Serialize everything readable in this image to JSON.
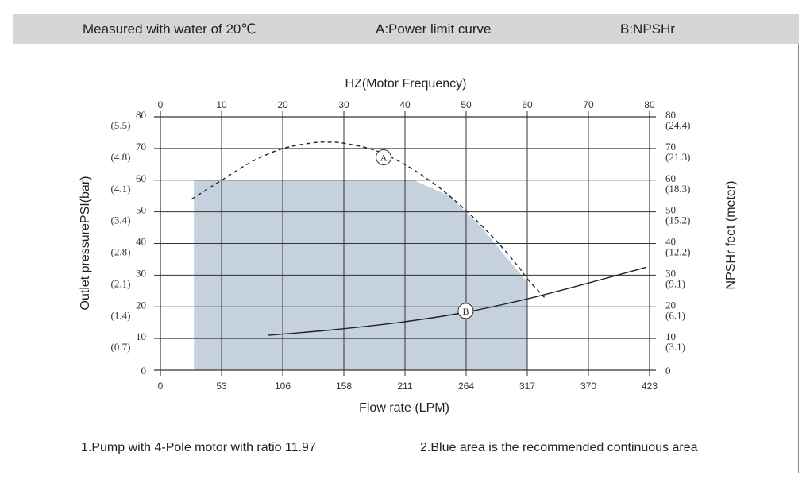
{
  "header": {
    "measured": "Measured with water of 20℃",
    "curve_a": "A:Power limit curve",
    "curve_b": "B:NPSHr"
  },
  "footer": {
    "note1": "1.Pump with 4-Pole motor with ratio 11.97",
    "note2": "2.Blue area is the recommended continuous area"
  },
  "chart_data": {
    "type": "line",
    "title": "",
    "xlabel": "Flow rate (LPM)",
    "x2label": "HZ(Motor Frequency)",
    "ylabel": "Outlet pressurePSI(bar)",
    "y2label": "NPSHr feet (meter)",
    "xlim": [
      0,
      423
    ],
    "ylim": [
      0,
      80
    ],
    "x_ticks": [
      "0",
      "53",
      "106",
      "158",
      "211",
      "264",
      "317",
      "370",
      "423"
    ],
    "x2_ticks": [
      "0",
      "10",
      "20",
      "30",
      "40",
      "50",
      "60",
      "70",
      "80"
    ],
    "y_ticks": [
      {
        "value": 0,
        "psi": "0",
        "bar": ""
      },
      {
        "value": 10,
        "psi": "10",
        "bar": "(0.7)"
      },
      {
        "value": 20,
        "psi": "20",
        "bar": "(1.4)"
      },
      {
        "value": 30,
        "psi": "30",
        "bar": "(2.1)"
      },
      {
        "value": 40,
        "psi": "40",
        "bar": "(2.8)"
      },
      {
        "value": 50,
        "psi": "50",
        "bar": "(3.4)"
      },
      {
        "value": 60,
        "psi": "60",
        "bar": "(4.1)"
      },
      {
        "value": 70,
        "psi": "70",
        "bar": "(4.8)"
      },
      {
        "value": 80,
        "psi": "80",
        "bar": "(5.5)"
      }
    ],
    "y2_ticks": [
      {
        "value": 0,
        "feet": "0",
        "meter": ""
      },
      {
        "value": 10,
        "feet": "10",
        "meter": "(3.1)"
      },
      {
        "value": 20,
        "feet": "20",
        "meter": "(6.1)"
      },
      {
        "value": 30,
        "feet": "30",
        "meter": "(9.1)"
      },
      {
        "value": 40,
        "feet": "40",
        "meter": "(12.2)"
      },
      {
        "value": 50,
        "feet": "50",
        "meter": "(15.2)"
      },
      {
        "value": 60,
        "feet": "60",
        "meter": "(18.3)"
      },
      {
        "value": 70,
        "feet": "70",
        "meter": "(21.3)"
      },
      {
        "value": 80,
        "feet": "80",
        "meter": "(24.4)"
      }
    ],
    "grid": true,
    "area": {
      "color": "#c5d1dd",
      "points": [
        [
          29,
          0
        ],
        [
          29,
          60
        ],
        [
          219,
          60
        ],
        [
          250,
          55
        ],
        [
          278,
          45
        ],
        [
          296,
          37
        ],
        [
          317,
          28
        ],
        [
          317,
          0
        ]
      ]
    },
    "series": [
      {
        "name": "A",
        "style": "dashed",
        "color": "#222222",
        "points": [
          [
            27,
            54
          ],
          [
            53,
            60
          ],
          [
            80,
            66
          ],
          [
            106,
            70
          ],
          [
            132,
            71.8
          ],
          [
            145,
            72
          ],
          [
            158,
            71.7
          ],
          [
            185,
            69.5
          ],
          [
            211,
            65
          ],
          [
            238,
            58.5
          ],
          [
            264,
            50.5
          ],
          [
            290,
            41
          ],
          [
            310,
            32.5
          ],
          [
            317,
            29
          ],
          [
            332,
            23
          ]
        ],
        "label": "A",
        "label_at": [
          193,
          67.2
        ]
      },
      {
        "name": "B",
        "style": "solid",
        "color": "#222222",
        "points": [
          [
            93,
            11
          ],
          [
            150,
            12.8
          ],
          [
            211,
            15.3
          ],
          [
            264,
            18.3
          ],
          [
            317,
            22.5
          ],
          [
            370,
            27.5
          ],
          [
            420,
            32.5
          ]
        ],
        "label": "B",
        "label_at": [
          264,
          18.7
        ]
      }
    ]
  }
}
